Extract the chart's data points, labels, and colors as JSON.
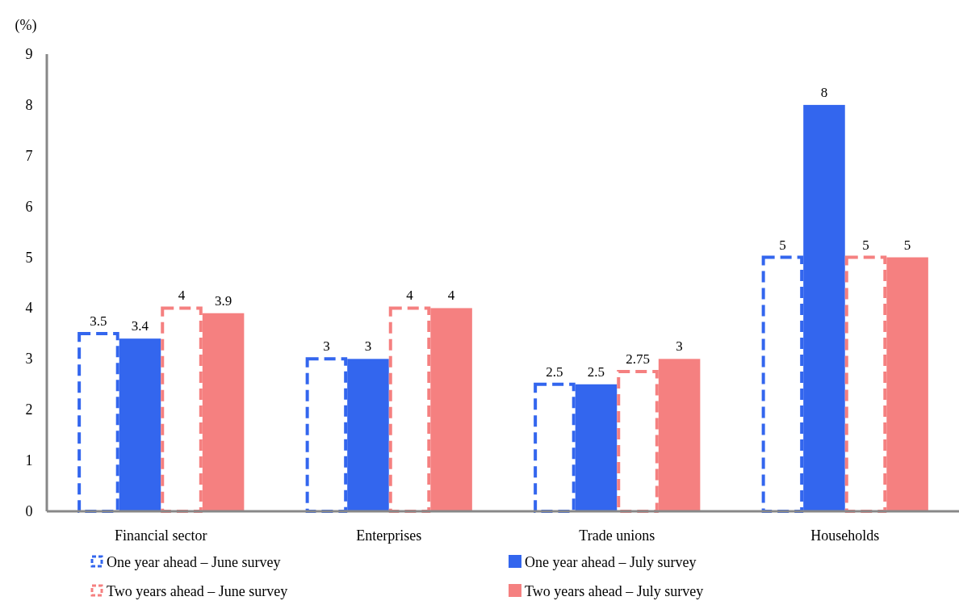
{
  "chart_data": {
    "type": "bar",
    "ylabel": "(%)",
    "categories": [
      "Financial sector",
      "Enterprises",
      "Trade unions",
      "Households"
    ],
    "series": [
      {
        "name": "One year ahead – June survey",
        "color": "#3366ee",
        "line_style": "dashed",
        "values": [
          3.5,
          3,
          2.5,
          5
        ]
      },
      {
        "name": "One year ahead – July survey",
        "color": "#3366ee",
        "values": [
          3.4,
          3,
          2.5,
          8
        ]
      },
      {
        "name": "Two years ahead – June survey",
        "color": "#f58080",
        "line_style": "dashed",
        "values": [
          4,
          4,
          2.75,
          5
        ]
      },
      {
        "name": "Two years ahead – July survey",
        "color": "#f58080",
        "values": [
          3.9,
          4,
          3,
          5
        ]
      }
    ],
    "ylim": [
      0,
      9
    ],
    "yticks": [
      0,
      1,
      2,
      3,
      4,
      5,
      6,
      7,
      8,
      9
    ],
    "data_labels": true,
    "legend": "bottom",
    "grid": false
  }
}
